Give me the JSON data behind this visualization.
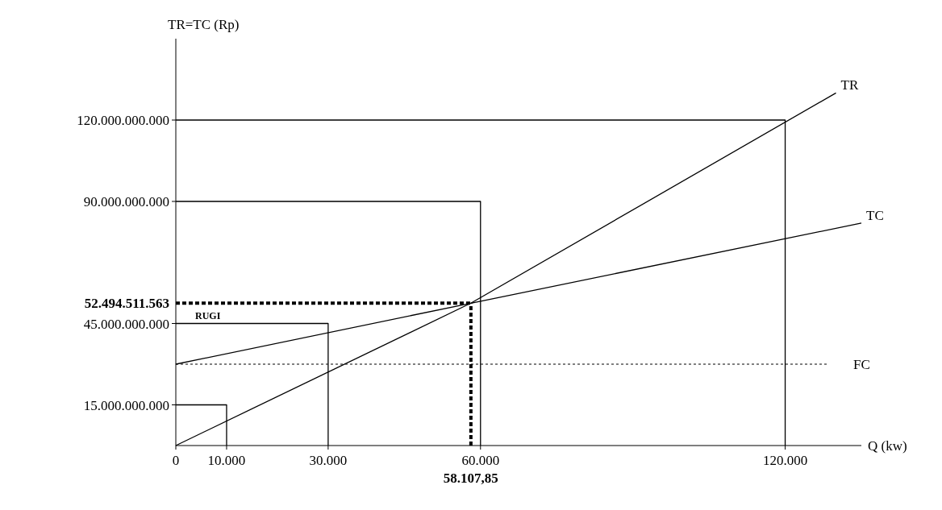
{
  "chart_data": {
    "type": "line",
    "xlabel": "Q (kw)",
    "ylabel": "TR=TC (Rp)",
    "xlim": [
      0,
      135000
    ],
    "ylim": [
      0,
      150000000000
    ],
    "xticks": [
      0,
      {
        "value": 10000,
        "label": "10.000"
      },
      {
        "value": 30000,
        "label": "30.000"
      },
      {
        "value": 60000,
        "label": "60.000"
      },
      {
        "value": 120000,
        "label": "120.000"
      }
    ],
    "yticks": [
      {
        "value": 15000000000,
        "label": "15.000.000.000"
      },
      {
        "value": 45000000000,
        "label": "45.000.000.000"
      },
      {
        "value": 90000000000,
        "label": "90.000.000.000"
      },
      {
        "value": 120000000000,
        "label": "120.000.000.000"
      }
    ],
    "series": [
      {
        "name": "TR",
        "color": "#000000",
        "x": [
          0,
          58107.85,
          130000
        ],
        "values": [
          0,
          52494511563,
          130000000000
        ]
      },
      {
        "name": "TC",
        "color": "#000000",
        "x": [
          0,
          58107.85,
          135000
        ],
        "values": [
          30000000000,
          52494511563,
          82000000000
        ]
      },
      {
        "color": "#000000",
        "x": [
          0,
          120000,
          120000
        ],
        "values": [
          120000000000,
          120000000000,
          0
        ]
      },
      {
        "color": "#000000",
        "x": [
          0,
          60000,
          60000
        ],
        "values": [
          90000000000,
          90000000000,
          0
        ]
      },
      {
        "color": "#000000",
        "x": [
          0,
          30000,
          30000
        ],
        "values": [
          45000000000,
          45000000000,
          0
        ]
      },
      {
        "color": "#000000",
        "x": [
          0,
          10000,
          10000
        ],
        "values": [
          15000000000,
          15000000000,
          0
        ]
      }
    ],
    "ref_lines": [
      {
        "axis": "y",
        "value": 30000000000,
        "label": "FC",
        "line_style": "dotted",
        "color": "#000000"
      },
      {
        "axis": "x",
        "value": 58107.85,
        "label": "58.107,85",
        "line_style": "dashed",
        "color": "#000000"
      },
      {
        "axis": "y",
        "value": 52494511563,
        "label": "52.494.511.563",
        "line_style": "dashed",
        "color": "#000000"
      }
    ],
    "annotations": [
      "RUGI"
    ],
    "grid": false
  }
}
